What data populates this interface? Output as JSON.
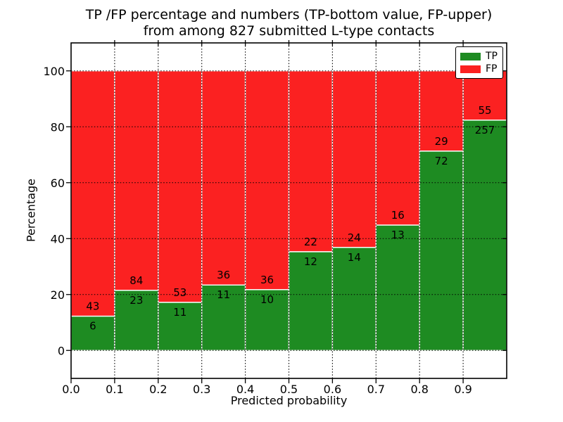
{
  "figure": {
    "title_line1": "TP /FP percentage and numbers (TP-bottom value, FP-upper)",
    "title_line2": "from among 827 submitted L-type contacts",
    "xlabel": "Predicted probability",
    "ylabel": "Percentage"
  },
  "colors": {
    "tp_green": "#1e8b22",
    "fp_red": "#fb2121",
    "grid": "#000000",
    "frame": "#000000",
    "bar_edge": "#ffffff",
    "text": "#000000",
    "background": "#ffffff"
  },
  "chart_data": {
    "type": "bar",
    "stacked": true,
    "normalized_to_percent": 100,
    "title": "TP /FP percentage and numbers (TP-bottom value, FP-upper) from among 827 submitted L-type contacts",
    "xlabel": "Predicted probability",
    "ylabel": "Percentage",
    "total_contacts": 827,
    "bar_value_labels": "counts (TP-bottom value, FP-upper)",
    "categories": [
      "0.0-0.1",
      "0.1-0.2",
      "0.2-0.3",
      "0.3-0.4",
      "0.4-0.5",
      "0.5-0.6",
      "0.6-0.7",
      "0.7-0.8",
      "0.8-0.9",
      "0.9-1.0"
    ],
    "bin_edges": [
      0.0,
      0.1,
      0.2,
      0.3,
      0.4,
      0.5,
      0.6,
      0.7,
      0.8,
      0.9,
      1.0
    ],
    "xtick_labels": [
      "0.0",
      "0.1",
      "0.2",
      "0.3",
      "0.4",
      "0.5",
      "0.6",
      "0.7",
      "0.8",
      "0.9"
    ],
    "ytick_values": [
      0,
      20,
      40,
      60,
      80,
      100
    ],
    "ytick_labels": [
      "0",
      "20",
      "40",
      "60",
      "80",
      "100"
    ],
    "xlim": [
      0.0,
      1.0
    ],
    "ylim": [
      -10,
      110
    ],
    "grid": true,
    "grid_style": "dotted",
    "legend_position": "upper right",
    "series": [
      {
        "name": "TP",
        "color": "#1e8b22",
        "counts": [
          6,
          23,
          11,
          11,
          10,
          12,
          14,
          13,
          72,
          257
        ],
        "percentages": [
          12.2,
          21.5,
          17.2,
          23.4,
          21.7,
          35.3,
          36.8,
          44.8,
          71.3,
          82.4
        ]
      },
      {
        "name": "FP",
        "color": "#fb2121",
        "counts": [
          43,
          84,
          53,
          36,
          36,
          22,
          24,
          16,
          29,
          55
        ],
        "percentages": [
          87.8,
          78.5,
          82.8,
          76.6,
          78.3,
          64.7,
          63.2,
          55.2,
          28.7,
          17.6
        ]
      }
    ]
  }
}
